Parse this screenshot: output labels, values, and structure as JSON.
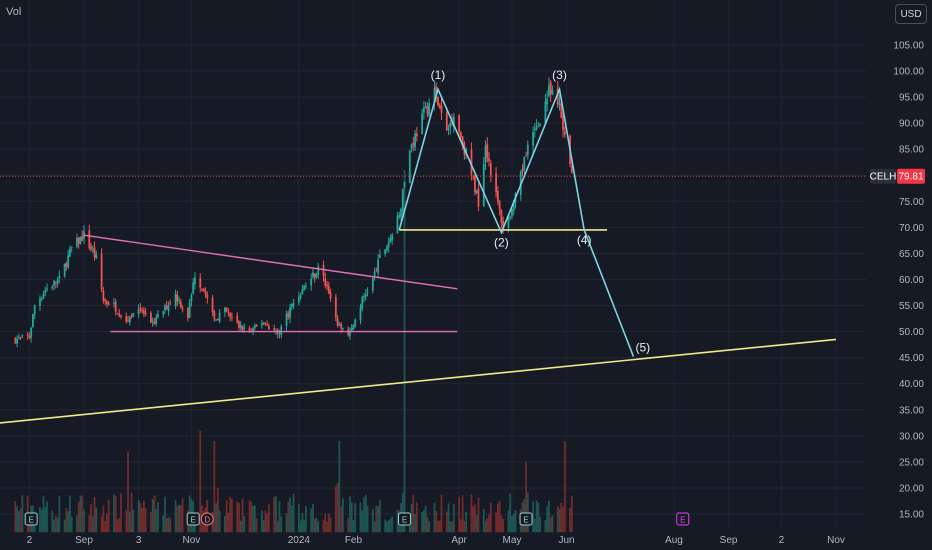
{
  "header": {
    "volume_label": "Vol",
    "currency": "USD"
  },
  "colors": {
    "background": "#161a25",
    "up": "#26a69a",
    "down": "#ef5350",
    "wave": "#7fd3e6",
    "support": "#f5e88c",
    "triangle": "#e36fb4",
    "price_tag": "#f23645"
  },
  "chart_data": {
    "type": "candlestick",
    "title": "",
    "symbol": "CELH",
    "last_price": {
      "label": "CELH",
      "value": "79.81",
      "price": 79.81
    },
    "ylim": [
      11.5,
      110
    ],
    "y_ticks": [
      "105.00",
      "100.00",
      "95.00",
      "90.00",
      "85.00",
      "80.00",
      "75.00",
      "70.00",
      "65.00",
      "60.00",
      "55.00",
      "50.00",
      "45.00",
      "40.00",
      "35.00",
      "30.00",
      "25.00",
      "20.00",
      "15.00"
    ],
    "x_ticks": [
      "2",
      "Sep",
      "3",
      "Nov",
      "2024",
      "Feb",
      "Apr",
      "May",
      "Jun",
      "Aug",
      "Sep",
      "2",
      "Nov"
    ],
    "price_path": [
      [
        "2023-07-24",
        48.5
      ],
      [
        "2023-08-01",
        49
      ],
      [
        "2023-08-04",
        55
      ],
      [
        "2023-08-10",
        58
      ],
      [
        "2023-08-18",
        60
      ],
      [
        "2023-08-25",
        66
      ],
      [
        "2023-09-01",
        68.5
      ],
      [
        "2023-09-08",
        64
      ],
      [
        "2023-09-12",
        56
      ],
      [
        "2023-09-18",
        55
      ],
      [
        "2023-09-25",
        52
      ],
      [
        "2023-10-02",
        55
      ],
      [
        "2023-10-09",
        51
      ],
      [
        "2023-10-16",
        54
      ],
      [
        "2023-10-23",
        57
      ],
      [
        "2023-10-30",
        53
      ],
      [
        "2023-11-03",
        61
      ],
      [
        "2023-11-08",
        58
      ],
      [
        "2023-11-14",
        52
      ],
      [
        "2023-11-20",
        54
      ],
      [
        "2023-11-28",
        51
      ],
      [
        "2023-12-05",
        50
      ],
      [
        "2023-12-12",
        52
      ],
      [
        "2023-12-20",
        49.5
      ],
      [
        "2023-12-28",
        55
      ],
      [
        "2024-01-05",
        59
      ],
      [
        "2024-01-12",
        62
      ],
      [
        "2024-01-18",
        58
      ],
      [
        "2024-01-22",
        52
      ],
      [
        "2024-01-30",
        49.5
      ],
      [
        "2024-02-06",
        56
      ],
      [
        "2024-02-12",
        60
      ],
      [
        "2024-02-16",
        64
      ],
      [
        "2024-02-22",
        68
      ],
      [
        "2024-02-27",
        72
      ],
      [
        "2024-03-04",
        85
      ],
      [
        "2024-03-11",
        91
      ],
      [
        "2024-03-18",
        96
      ],
      [
        "2024-03-25",
        88
      ],
      [
        "2024-03-29",
        92
      ],
      [
        "2024-04-05",
        84
      ],
      [
        "2024-04-12",
        75
      ],
      [
        "2024-04-16",
        86
      ],
      [
        "2024-04-22",
        76
      ],
      [
        "2024-04-26",
        70
      ],
      [
        "2024-05-02",
        74
      ],
      [
        "2024-05-09",
        84
      ],
      [
        "2024-05-16",
        90
      ],
      [
        "2024-05-22",
        96
      ],
      [
        "2024-05-28",
        93
      ],
      [
        "2024-05-31",
        87
      ],
      [
        "2024-06-04",
        80.5
      ]
    ],
    "volume_spikes": [
      [
        "2023-09-26",
        27
      ],
      [
        "2023-11-06",
        31
      ],
      [
        "2023-11-14",
        29
      ],
      [
        "2024-01-24",
        29
      ],
      [
        "2024-03-01",
        81
      ],
      [
        "2024-05-09",
        25
      ],
      [
        "2024-05-31",
        29
      ]
    ],
    "event_markers": [
      {
        "date": "2023-08-02",
        "label": "E"
      },
      {
        "date": "2023-11-02",
        "label": "E"
      },
      {
        "date": "2023-11-10",
        "label": "D"
      },
      {
        "date": "2024-03-01",
        "label": "E"
      },
      {
        "date": "2024-05-09",
        "label": "E"
      },
      {
        "date": "2024-08-06",
        "label": "E"
      }
    ],
    "wave_labels": [
      {
        "label": "(1)",
        "date": "2024-03-20",
        "price": 96.5
      },
      {
        "label": "(2)",
        "date": "2024-04-25",
        "price": 69
      },
      {
        "label": "(3)",
        "date": "2024-05-28",
        "price": 96.5
      },
      {
        "label": "(4)",
        "date": "2024-06-11",
        "price": 69.5
      },
      {
        "label": "(5)",
        "date": "2024-07-09",
        "price": 45.2
      }
    ],
    "wave_path": [
      [
        "2024-02-27",
        69.5
      ],
      [
        "2024-03-20",
        96.5
      ],
      [
        "2024-04-25",
        69
      ],
      [
        "2024-05-28",
        96.5
      ],
      [
        "2024-06-11",
        69.5
      ],
      [
        "2024-07-09",
        45.2
      ]
    ],
    "support_line": {
      "from": [
        "2024-02-27",
        69.5
      ],
      "to": [
        "2024-06-24",
        69.5
      ]
    },
    "trend_line": {
      "from": [
        "2023-07-01",
        32
      ],
      "to": [
        "2024-11-01",
        48.5
      ]
    },
    "triangle_upper": {
      "from": [
        "2023-09-01",
        68.5
      ],
      "to": [
        "2024-03-31",
        58.2
      ]
    },
    "triangle_lower": {
      "from": [
        "2023-09-16",
        50
      ],
      "to": [
        "2024-03-31",
        50
      ]
    }
  }
}
